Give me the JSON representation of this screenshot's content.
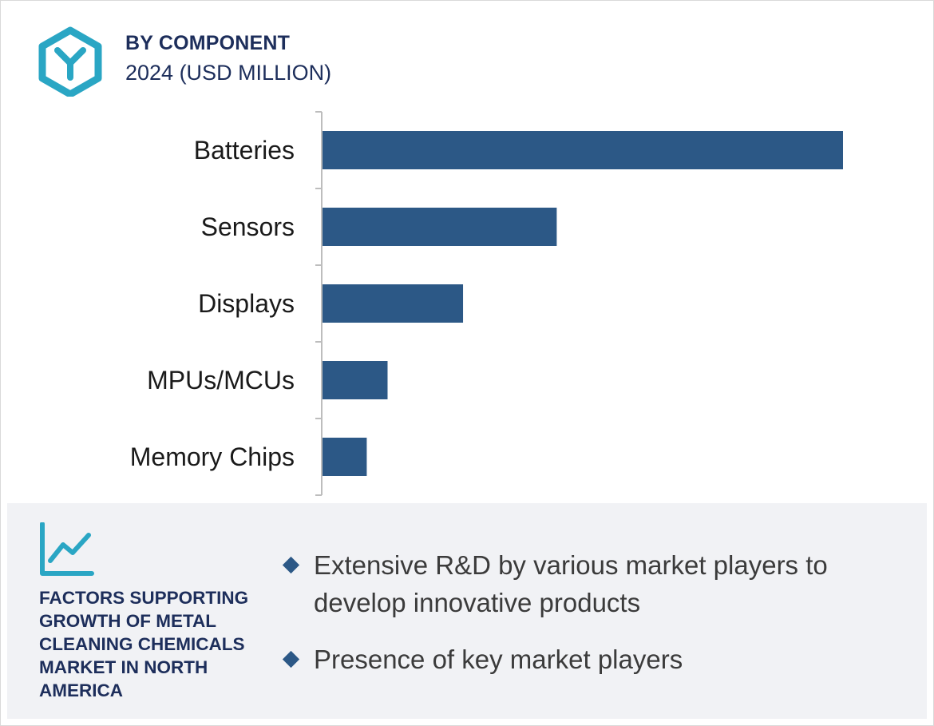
{
  "header": {
    "title": "BY COMPONENT",
    "subtitle": "2024 (USD MILLION)",
    "logo_icon": "hexagon-y-logo-icon"
  },
  "colors": {
    "bar": "#2c5886",
    "accent": "#2aa6c4",
    "navy": "#1d2e5b",
    "panel": "#f1f2f5"
  },
  "chart_data": {
    "type": "bar",
    "orientation": "horizontal",
    "categories": [
      "Batteries",
      "Sensors",
      "Displays",
      "MPUs/MCUs",
      "Memory Chips"
    ],
    "values": [
      100,
      45,
      27,
      12.5,
      8.5
    ],
    "xlim": [
      0,
      100
    ],
    "axis_values_shown": false,
    "grid": false
  },
  "factors": {
    "icon": "growth-chart-icon",
    "title": "FACTORS SUPPORTING GROWTH OF METAL CLEANING CHEMICALS MARKET IN NORTH AMERICA",
    "items": [
      "Extensive R&D by various market players to develop innovative products",
      "Presence of key market players"
    ]
  }
}
